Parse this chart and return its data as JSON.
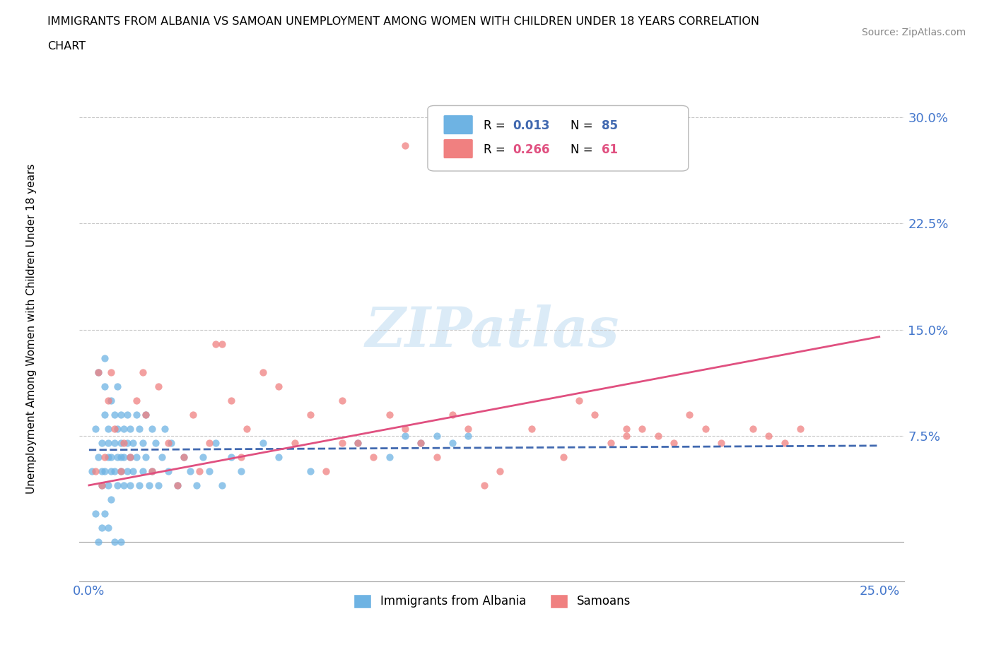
{
  "title_line1": "IMMIGRANTS FROM ALBANIA VS SAMOAN UNEMPLOYMENT AMONG WOMEN WITH CHILDREN UNDER 18 YEARS CORRELATION",
  "title_line2": "CHART",
  "source": "Source: ZipAtlas.com",
  "ylabel": "Unemployment Among Women with Children Under 18 years",
  "color_albania": "#6eb3e3",
  "color_samoa": "#f08080",
  "color_albania_line": "#4169b0",
  "color_samoa_line": "#e05080",
  "color_grid": "#c8c8c8",
  "color_axis": "#a0a0a0",
  "color_tick": "#4477cc",
  "watermark_color": "#b8d8f0",
  "albania_x": [
    0.001,
    0.002,
    0.002,
    0.003,
    0.003,
    0.003,
    0.004,
    0.004,
    0.004,
    0.004,
    0.005,
    0.005,
    0.005,
    0.005,
    0.005,
    0.006,
    0.006,
    0.006,
    0.006,
    0.006,
    0.007,
    0.007,
    0.007,
    0.007,
    0.008,
    0.008,
    0.008,
    0.008,
    0.009,
    0.009,
    0.009,
    0.009,
    0.01,
    0.01,
    0.01,
    0.01,
    0.01,
    0.011,
    0.011,
    0.011,
    0.012,
    0.012,
    0.012,
    0.013,
    0.013,
    0.013,
    0.014,
    0.014,
    0.015,
    0.015,
    0.016,
    0.016,
    0.017,
    0.017,
    0.018,
    0.018,
    0.019,
    0.02,
    0.02,
    0.021,
    0.022,
    0.023,
    0.024,
    0.025,
    0.026,
    0.028,
    0.03,
    0.032,
    0.034,
    0.036,
    0.038,
    0.04,
    0.042,
    0.045,
    0.048,
    0.055,
    0.06,
    0.07,
    0.085,
    0.095,
    0.1,
    0.105,
    0.11,
    0.115,
    0.12
  ],
  "albania_y": [
    0.05,
    0.08,
    0.02,
    0.12,
    0.06,
    0.0,
    0.07,
    0.05,
    0.04,
    0.01,
    0.09,
    0.11,
    0.13,
    0.05,
    0.02,
    0.08,
    0.06,
    0.04,
    0.07,
    0.01,
    0.1,
    0.05,
    0.06,
    0.03,
    0.09,
    0.07,
    0.05,
    0.0,
    0.11,
    0.06,
    0.04,
    0.08,
    0.07,
    0.05,
    0.09,
    0.06,
    0.0,
    0.08,
    0.04,
    0.06,
    0.07,
    0.05,
    0.09,
    0.06,
    0.04,
    0.08,
    0.07,
    0.05,
    0.09,
    0.06,
    0.04,
    0.08,
    0.07,
    0.05,
    0.09,
    0.06,
    0.04,
    0.08,
    0.05,
    0.07,
    0.04,
    0.06,
    0.08,
    0.05,
    0.07,
    0.04,
    0.06,
    0.05,
    0.04,
    0.06,
    0.05,
    0.07,
    0.04,
    0.06,
    0.05,
    0.07,
    0.06,
    0.05,
    0.07,
    0.06,
    0.075,
    0.07,
    0.075,
    0.07,
    0.075
  ],
  "samoa_x": [
    0.002,
    0.003,
    0.004,
    0.005,
    0.006,
    0.007,
    0.008,
    0.01,
    0.011,
    0.013,
    0.015,
    0.017,
    0.018,
    0.02,
    0.022,
    0.025,
    0.028,
    0.03,
    0.033,
    0.035,
    0.038,
    0.04,
    0.042,
    0.045,
    0.048,
    0.05,
    0.055,
    0.06,
    0.065,
    0.07,
    0.075,
    0.08,
    0.085,
    0.09,
    0.095,
    0.1,
    0.105,
    0.11,
    0.115,
    0.12,
    0.125,
    0.13,
    0.14,
    0.15,
    0.155,
    0.16,
    0.165,
    0.17,
    0.175,
    0.18,
    0.185,
    0.19,
    0.195,
    0.2,
    0.21,
    0.215,
    0.22,
    0.225,
    0.17,
    0.1,
    0.08
  ],
  "samoa_y": [
    0.05,
    0.12,
    0.04,
    0.06,
    0.1,
    0.12,
    0.08,
    0.05,
    0.07,
    0.06,
    0.1,
    0.12,
    0.09,
    0.05,
    0.11,
    0.07,
    0.04,
    0.06,
    0.09,
    0.05,
    0.07,
    0.14,
    0.14,
    0.1,
    0.06,
    0.08,
    0.12,
    0.11,
    0.07,
    0.09,
    0.05,
    0.1,
    0.07,
    0.06,
    0.09,
    0.08,
    0.07,
    0.06,
    0.09,
    0.08,
    0.04,
    0.05,
    0.08,
    0.06,
    0.1,
    0.09,
    0.07,
    0.08,
    0.08,
    0.075,
    0.07,
    0.09,
    0.08,
    0.07,
    0.08,
    0.075,
    0.07,
    0.08,
    0.075,
    0.28,
    0.07
  ],
  "albania_trend": [
    0.065,
    0.068
  ],
  "samoa_trend": [
    0.04,
    0.145
  ],
  "xlim": [
    -0.003,
    0.258
  ],
  "ylim": [
    -0.028,
    0.325
  ],
  "xticks": [
    0.0,
    0.05,
    0.1,
    0.15,
    0.2,
    0.25
  ],
  "yticks": [
    0.0,
    0.075,
    0.15,
    0.225,
    0.3
  ],
  "xticklabels_show": {
    "0.0": "0.0%",
    "0.25": "25.0%"
  },
  "yticklabels_show": {
    "0.075": "7.5%",
    "0.15": "15.0%",
    "0.225": "22.5%",
    "0.30": "30.0%"
  },
  "legend_items": [
    {
      "label": "R = 0.013",
      "n": "N = 85",
      "color": "#6eb3e3",
      "value_color": "#4169b0"
    },
    {
      "label": "R = 0.266",
      "n": "N = 61",
      "color": "#f08080",
      "value_color": "#e05080"
    }
  ],
  "bottom_legend": [
    {
      "label": "Immigrants from Albania",
      "color": "#6eb3e3"
    },
    {
      "label": "Samoans",
      "color": "#f08080"
    }
  ]
}
